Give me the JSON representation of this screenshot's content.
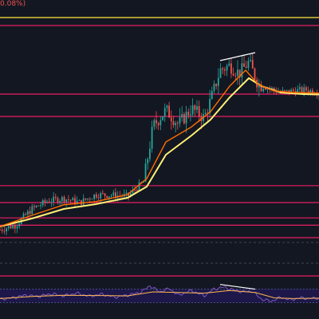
{
  "header": {
    "change_label": "0.08%)"
  },
  "colors": {
    "background": "#131722",
    "up": "#26a69a",
    "down": "#ef5350",
    "ema_fast": "#ff6d00",
    "ema_slow": "#fff176",
    "level_line": "#e91e63",
    "key_level": "#ffeb3b",
    "trendline": "#ffffff",
    "rsi_line": "#7e57c2",
    "rsi_signal": "#ffb74d",
    "rsi_band": "#311b92",
    "text": "#ef5350",
    "dashed": "#434651"
  },
  "chart_data": {
    "type": "candlestick",
    "title": "",
    "xlabel": "",
    "ylabel": "",
    "ylim": [
      0,
      100
    ],
    "x_range": [
      0,
      100
    ],
    "horizontal_levels": [
      {
        "kind": "key-level",
        "value": 94.5
      },
      {
        "kind": "level",
        "value": 92.0
      },
      {
        "kind": "level",
        "value": 70.5
      },
      {
        "kind": "level",
        "value": 63.5
      },
      {
        "kind": "level",
        "value": 41.8
      },
      {
        "kind": "level",
        "value": 36.5
      },
      {
        "kind": "level",
        "value": 31.7
      },
      {
        "kind": "level",
        "value": 29.4
      },
      {
        "kind": "level",
        "value": 25.5
      },
      {
        "kind": "level",
        "value": 13.5
      }
    ],
    "price_path": [
      [
        0,
        28.0
      ],
      [
        5,
        29.5
      ],
      [
        10,
        34.5
      ],
      [
        15,
        37.0
      ],
      [
        20,
        37.8
      ],
      [
        25,
        36.5
      ],
      [
        30,
        39.0
      ],
      [
        35,
        38.8
      ],
      [
        40,
        38.5
      ],
      [
        45,
        43.0
      ],
      [
        48,
        60.5
      ],
      [
        52,
        65.5
      ],
      [
        56,
        61.0
      ],
      [
        60,
        66.0
      ],
      [
        64,
        63.0
      ],
      [
        66,
        68.5
      ],
      [
        69,
        78.0
      ],
      [
        72,
        79.5
      ],
      [
        75,
        77.0
      ],
      [
        78,
        80.5
      ],
      [
        81,
        73.5
      ],
      [
        84,
        72.5
      ],
      [
        88,
        71.0
      ],
      [
        92,
        71.5
      ],
      [
        96,
        71.8
      ],
      [
        100,
        71.0
      ]
    ],
    "ema_fast": [
      [
        0,
        29.0
      ],
      [
        10,
        32.5
      ],
      [
        20,
        35.8
      ],
      [
        30,
        36.8
      ],
      [
        40,
        39.0
      ],
      [
        46,
        44.0
      ],
      [
        52,
        55.5
      ],
      [
        60,
        60.2
      ],
      [
        66,
        65.0
      ],
      [
        72,
        73.0
      ],
      [
        77,
        78.0
      ],
      [
        81,
        73.5
      ],
      [
        86,
        71.5
      ],
      [
        92,
        71.0
      ],
      [
        100,
        70.8
      ]
    ],
    "ema_slow": [
      [
        0,
        29.0
      ],
      [
        10,
        31.5
      ],
      [
        20,
        34.5
      ],
      [
        30,
        36.0
      ],
      [
        40,
        38.0
      ],
      [
        46,
        41.5
      ],
      [
        52,
        51.5
      ],
      [
        60,
        57.5
      ],
      [
        66,
        62.5
      ],
      [
        72,
        69.5
      ],
      [
        78,
        75.5
      ],
      [
        82,
        73.0
      ],
      [
        88,
        71.0
      ],
      [
        95,
        70.5
      ],
      [
        100,
        70.4
      ]
    ],
    "trendlines": [
      {
        "from": [
          69,
          81.0
        ],
        "to": [
          80,
          83.5
        ]
      }
    ],
    "rsi": {
      "band": [
        30,
        70
      ],
      "values": [
        [
          0,
          40
        ],
        [
          4,
          44
        ],
        [
          8,
          52
        ],
        [
          12,
          48
        ],
        [
          16,
          56
        ],
        [
          20,
          50
        ],
        [
          24,
          58
        ],
        [
          28,
          49
        ],
        [
          32,
          55
        ],
        [
          36,
          46
        ],
        [
          40,
          52
        ],
        [
          44,
          60
        ],
        [
          47,
          80
        ],
        [
          50,
          62
        ],
        [
          53,
          72
        ],
        [
          56,
          52
        ],
        [
          60,
          66
        ],
        [
          64,
          50
        ],
        [
          67,
          70
        ],
        [
          70,
          76
        ],
        [
          73,
          68
        ],
        [
          76,
          62
        ],
        [
          79,
          64
        ],
        [
          82,
          40
        ],
        [
          85,
          34
        ],
        [
          88,
          46
        ],
        [
          91,
          38
        ],
        [
          94,
          44
        ],
        [
          97,
          42
        ],
        [
          100,
          44
        ]
      ],
      "signal": [
        [
          0,
          42
        ],
        [
          10,
          48
        ],
        [
          20,
          52
        ],
        [
          30,
          51
        ],
        [
          40,
          50
        ],
        [
          48,
          62
        ],
        [
          56,
          60
        ],
        [
          64,
          58
        ],
        [
          72,
          66
        ],
        [
          80,
          60
        ],
        [
          86,
          44
        ],
        [
          92,
          42
        ],
        [
          100,
          43
        ]
      ],
      "trendlines": [
        {
          "from": [
            69,
            84
          ],
          "to": [
            80,
            70
          ]
        }
      ]
    }
  }
}
